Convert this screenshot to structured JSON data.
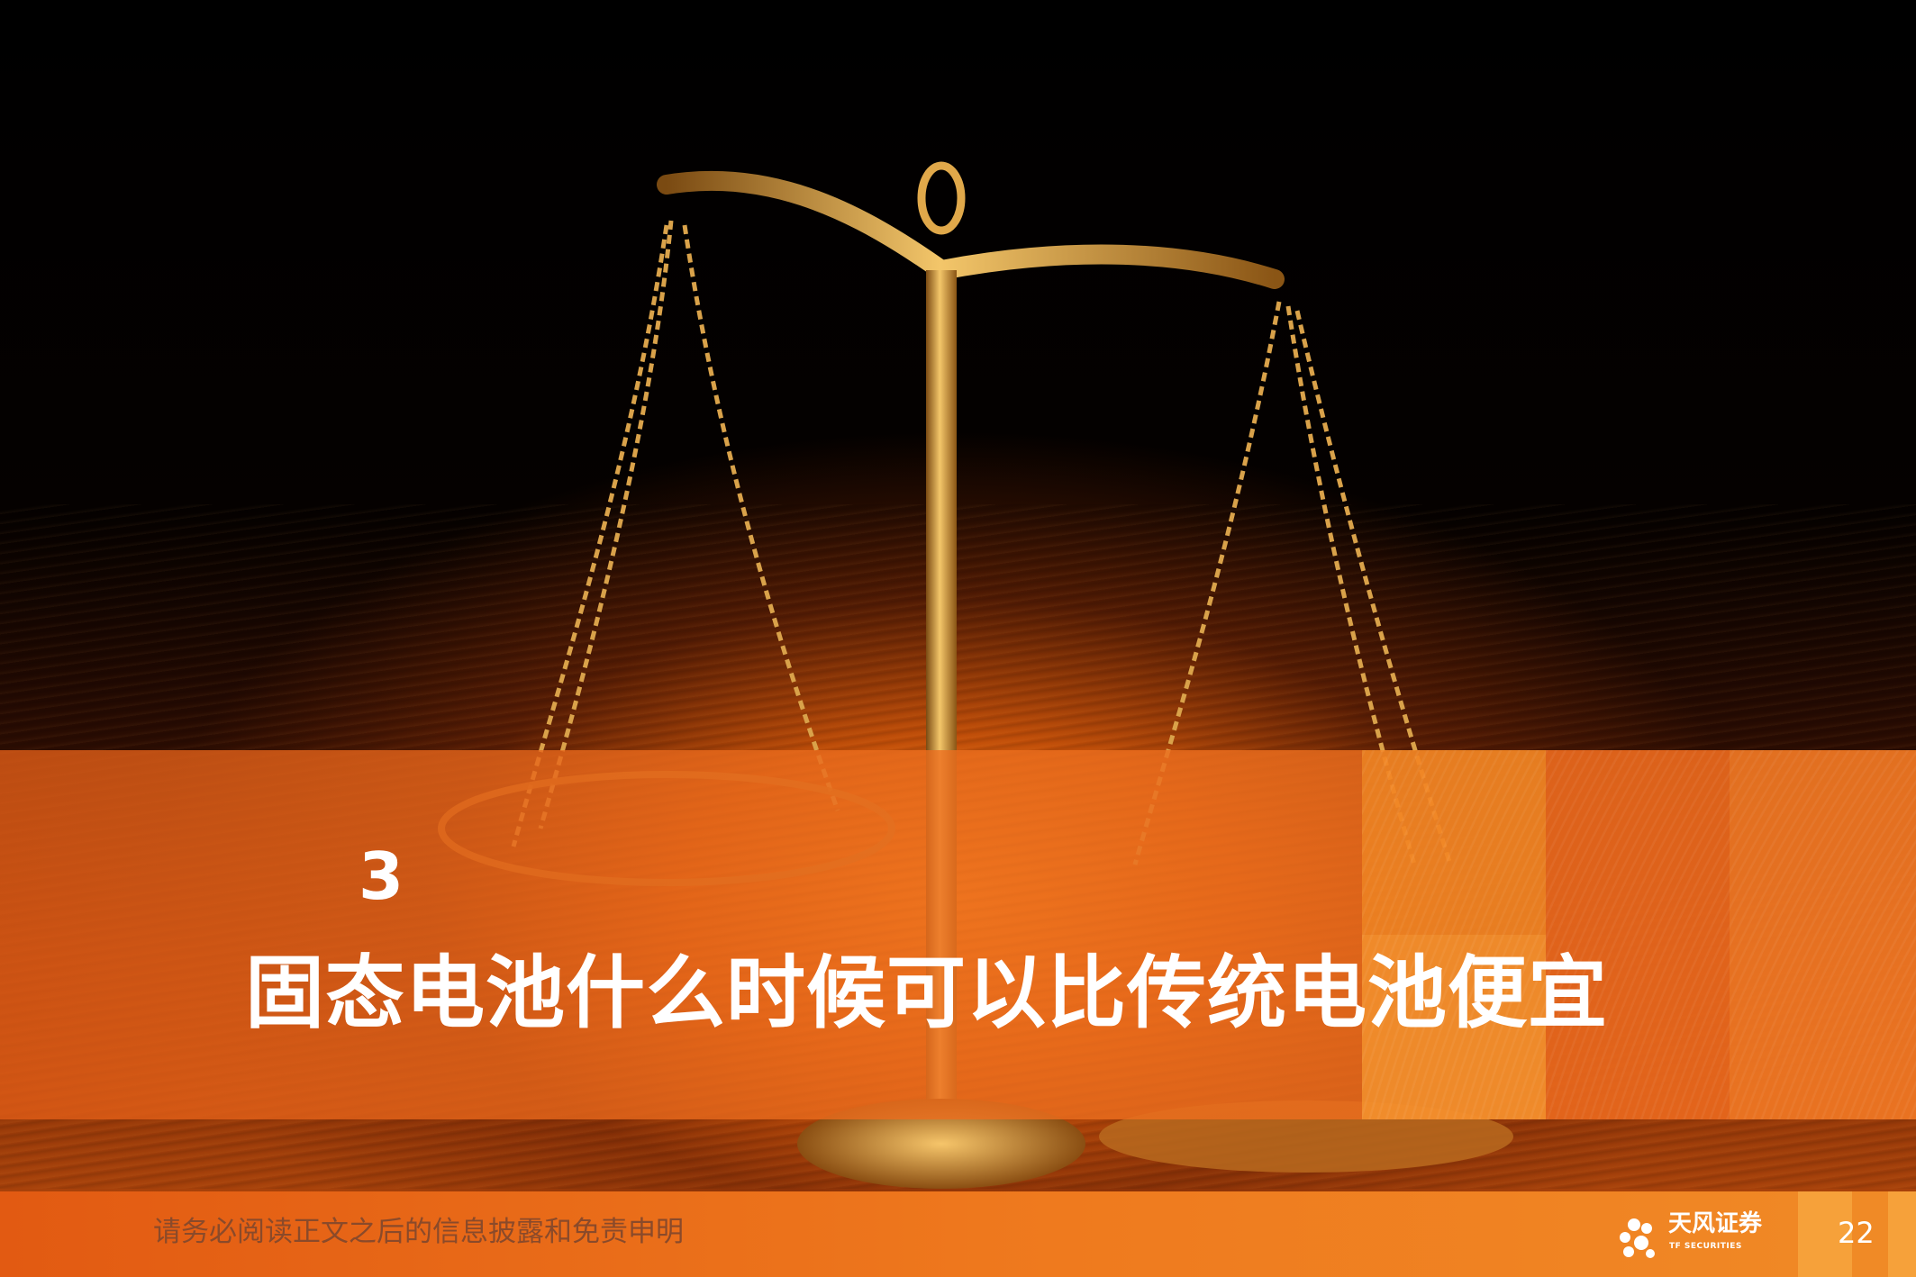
{
  "section": {
    "number": "3",
    "title": "固态电池什么时候可以比传统电池便宜"
  },
  "footer": {
    "disclaimer": "请务必阅读正文之后的信息披露和免责申明",
    "logo_cn": "天风证券",
    "logo_en": "TF SECURITIES",
    "page_number": "22"
  },
  "colors": {
    "band": "#e8691d",
    "footer": "#ef7a1e",
    "gold": "#d89a3c"
  },
  "images": {
    "background": "balance-scale-on-wood-table"
  }
}
